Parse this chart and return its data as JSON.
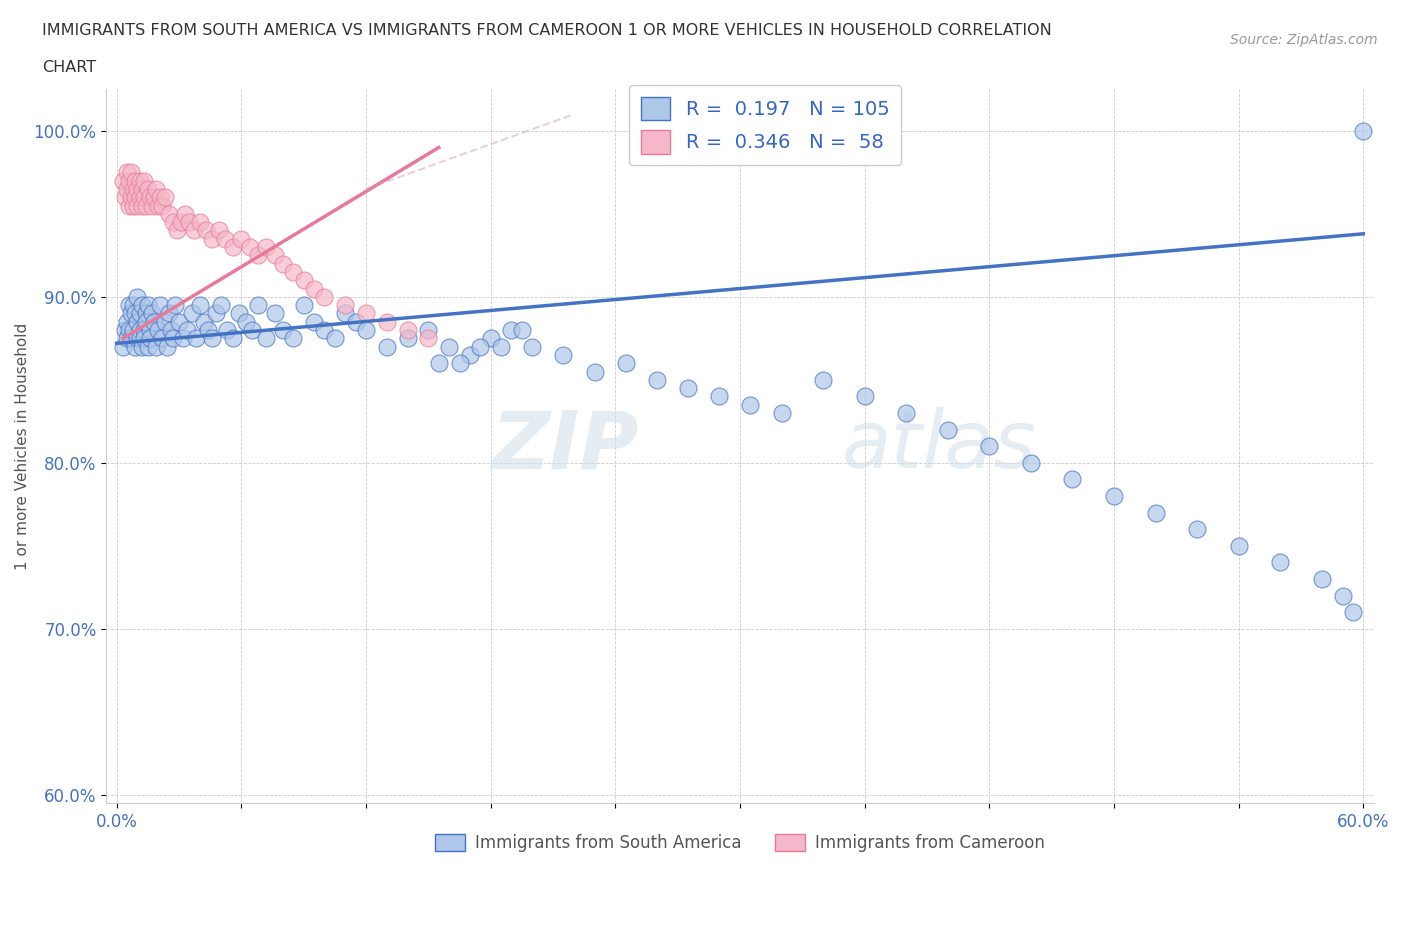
{
  "title_line1": "IMMIGRANTS FROM SOUTH AMERICA VS IMMIGRANTS FROM CAMEROON 1 OR MORE VEHICLES IN HOUSEHOLD CORRELATION",
  "title_line2": "CHART",
  "source_text": "Source: ZipAtlas.com",
  "ylabel": "1 or more Vehicles in Household",
  "xlim": [
    -0.005,
    0.605
  ],
  "ylim": [
    0.595,
    1.025
  ],
  "xtick_values": [
    0.0,
    0.06,
    0.12,
    0.18,
    0.24,
    0.3,
    0.36,
    0.42,
    0.48,
    0.54,
    0.6
  ],
  "xtick_labels": [
    "0.0%",
    "",
    "",
    "",
    "",
    "",
    "",
    "",
    "",
    "",
    "60.0%"
  ],
  "ytick_values": [
    0.6,
    0.7,
    0.8,
    0.9,
    1.0
  ],
  "ytick_labels": [
    "60.0%",
    "70.0%",
    "80.0%",
    "90.0%",
    "100.0%"
  ],
  "color_south_america": "#aec6e8",
  "color_cameroon": "#f4b8c8",
  "line_color_south_america": "#4472c4",
  "line_color_cameroon": "#e8799a",
  "line_color_cameroon_dashed": "#d4a0b0",
  "R_south_america": 0.197,
  "N_south_america": 105,
  "R_cameroon": 0.346,
  "N_cameroon": 58,
  "legend_label_sa": "Immigrants from South America",
  "legend_label_cam": "Immigrants from Cameroon",
  "watermark_zip": "ZIP",
  "watermark_atlas": "atlas",
  "sa_x": [
    0.003,
    0.004,
    0.005,
    0.005,
    0.006,
    0.006,
    0.007,
    0.007,
    0.008,
    0.008,
    0.009,
    0.009,
    0.01,
    0.01,
    0.01,
    0.011,
    0.011,
    0.011,
    0.012,
    0.012,
    0.013,
    0.013,
    0.014,
    0.014,
    0.015,
    0.015,
    0.016,
    0.016,
    0.017,
    0.018,
    0.019,
    0.02,
    0.021,
    0.022,
    0.023,
    0.024,
    0.025,
    0.026,
    0.027,
    0.028,
    0.03,
    0.032,
    0.034,
    0.036,
    0.038,
    0.04,
    0.042,
    0.044,
    0.046,
    0.048,
    0.05,
    0.053,
    0.056,
    0.059,
    0.062,
    0.065,
    0.068,
    0.072,
    0.076,
    0.08,
    0.085,
    0.09,
    0.095,
    0.1,
    0.105,
    0.11,
    0.115,
    0.12,
    0.13,
    0.14,
    0.15,
    0.16,
    0.17,
    0.18,
    0.19,
    0.2,
    0.215,
    0.23,
    0.245,
    0.26,
    0.275,
    0.29,
    0.305,
    0.32,
    0.34,
    0.36,
    0.38,
    0.4,
    0.42,
    0.44,
    0.46,
    0.48,
    0.5,
    0.52,
    0.54,
    0.56,
    0.58,
    0.59,
    0.595,
    0.6,
    0.155,
    0.165,
    0.175,
    0.185,
    0.195
  ],
  "sa_y": [
    0.87,
    0.88,
    0.875,
    0.885,
    0.88,
    0.895,
    0.875,
    0.89,
    0.88,
    0.895,
    0.87,
    0.89,
    0.875,
    0.885,
    0.9,
    0.88,
    0.89,
    0.875,
    0.87,
    0.895,
    0.88,
    0.875,
    0.89,
    0.885,
    0.87,
    0.895,
    0.88,
    0.875,
    0.89,
    0.885,
    0.87,
    0.88,
    0.895,
    0.875,
    0.885,
    0.87,
    0.89,
    0.88,
    0.875,
    0.895,
    0.885,
    0.875,
    0.88,
    0.89,
    0.875,
    0.895,
    0.885,
    0.88,
    0.875,
    0.89,
    0.895,
    0.88,
    0.875,
    0.89,
    0.885,
    0.88,
    0.895,
    0.875,
    0.89,
    0.88,
    0.875,
    0.895,
    0.885,
    0.88,
    0.875,
    0.89,
    0.885,
    0.88,
    0.87,
    0.875,
    0.88,
    0.87,
    0.865,
    0.875,
    0.88,
    0.87,
    0.865,
    0.855,
    0.86,
    0.85,
    0.845,
    0.84,
    0.835,
    0.83,
    0.85,
    0.84,
    0.83,
    0.82,
    0.81,
    0.8,
    0.79,
    0.78,
    0.77,
    0.76,
    0.75,
    0.74,
    0.73,
    0.72,
    0.71,
    1.0,
    0.86,
    0.86,
    0.87,
    0.87,
    0.88
  ],
  "cam_x": [
    0.003,
    0.004,
    0.005,
    0.005,
    0.006,
    0.006,
    0.007,
    0.007,
    0.008,
    0.008,
    0.009,
    0.009,
    0.01,
    0.01,
    0.011,
    0.011,
    0.012,
    0.012,
    0.013,
    0.013,
    0.014,
    0.015,
    0.016,
    0.017,
    0.018,
    0.019,
    0.02,
    0.021,
    0.022,
    0.023,
    0.025,
    0.027,
    0.029,
    0.031,
    0.033,
    0.035,
    0.037,
    0.04,
    0.043,
    0.046,
    0.049,
    0.052,
    0.056,
    0.06,
    0.064,
    0.068,
    0.072,
    0.076,
    0.08,
    0.085,
    0.09,
    0.095,
    0.1,
    0.11,
    0.12,
    0.13,
    0.14,
    0.15
  ],
  "cam_y": [
    0.97,
    0.96,
    0.965,
    0.975,
    0.955,
    0.97,
    0.96,
    0.975,
    0.955,
    0.965,
    0.96,
    0.97,
    0.955,
    0.965,
    0.96,
    0.97,
    0.955,
    0.965,
    0.96,
    0.97,
    0.955,
    0.965,
    0.96,
    0.955,
    0.96,
    0.965,
    0.955,
    0.96,
    0.955,
    0.96,
    0.95,
    0.945,
    0.94,
    0.945,
    0.95,
    0.945,
    0.94,
    0.945,
    0.94,
    0.935,
    0.94,
    0.935,
    0.93,
    0.935,
    0.93,
    0.925,
    0.93,
    0.925,
    0.92,
    0.915,
    0.91,
    0.905,
    0.9,
    0.895,
    0.89,
    0.885,
    0.88,
    0.875
  ],
  "sa_line_x": [
    0.0,
    0.6
  ],
  "sa_line_y": [
    0.872,
    0.938
  ],
  "cam_line_x": [
    0.003,
    0.155
  ],
  "cam_line_y": [
    0.875,
    0.99
  ]
}
